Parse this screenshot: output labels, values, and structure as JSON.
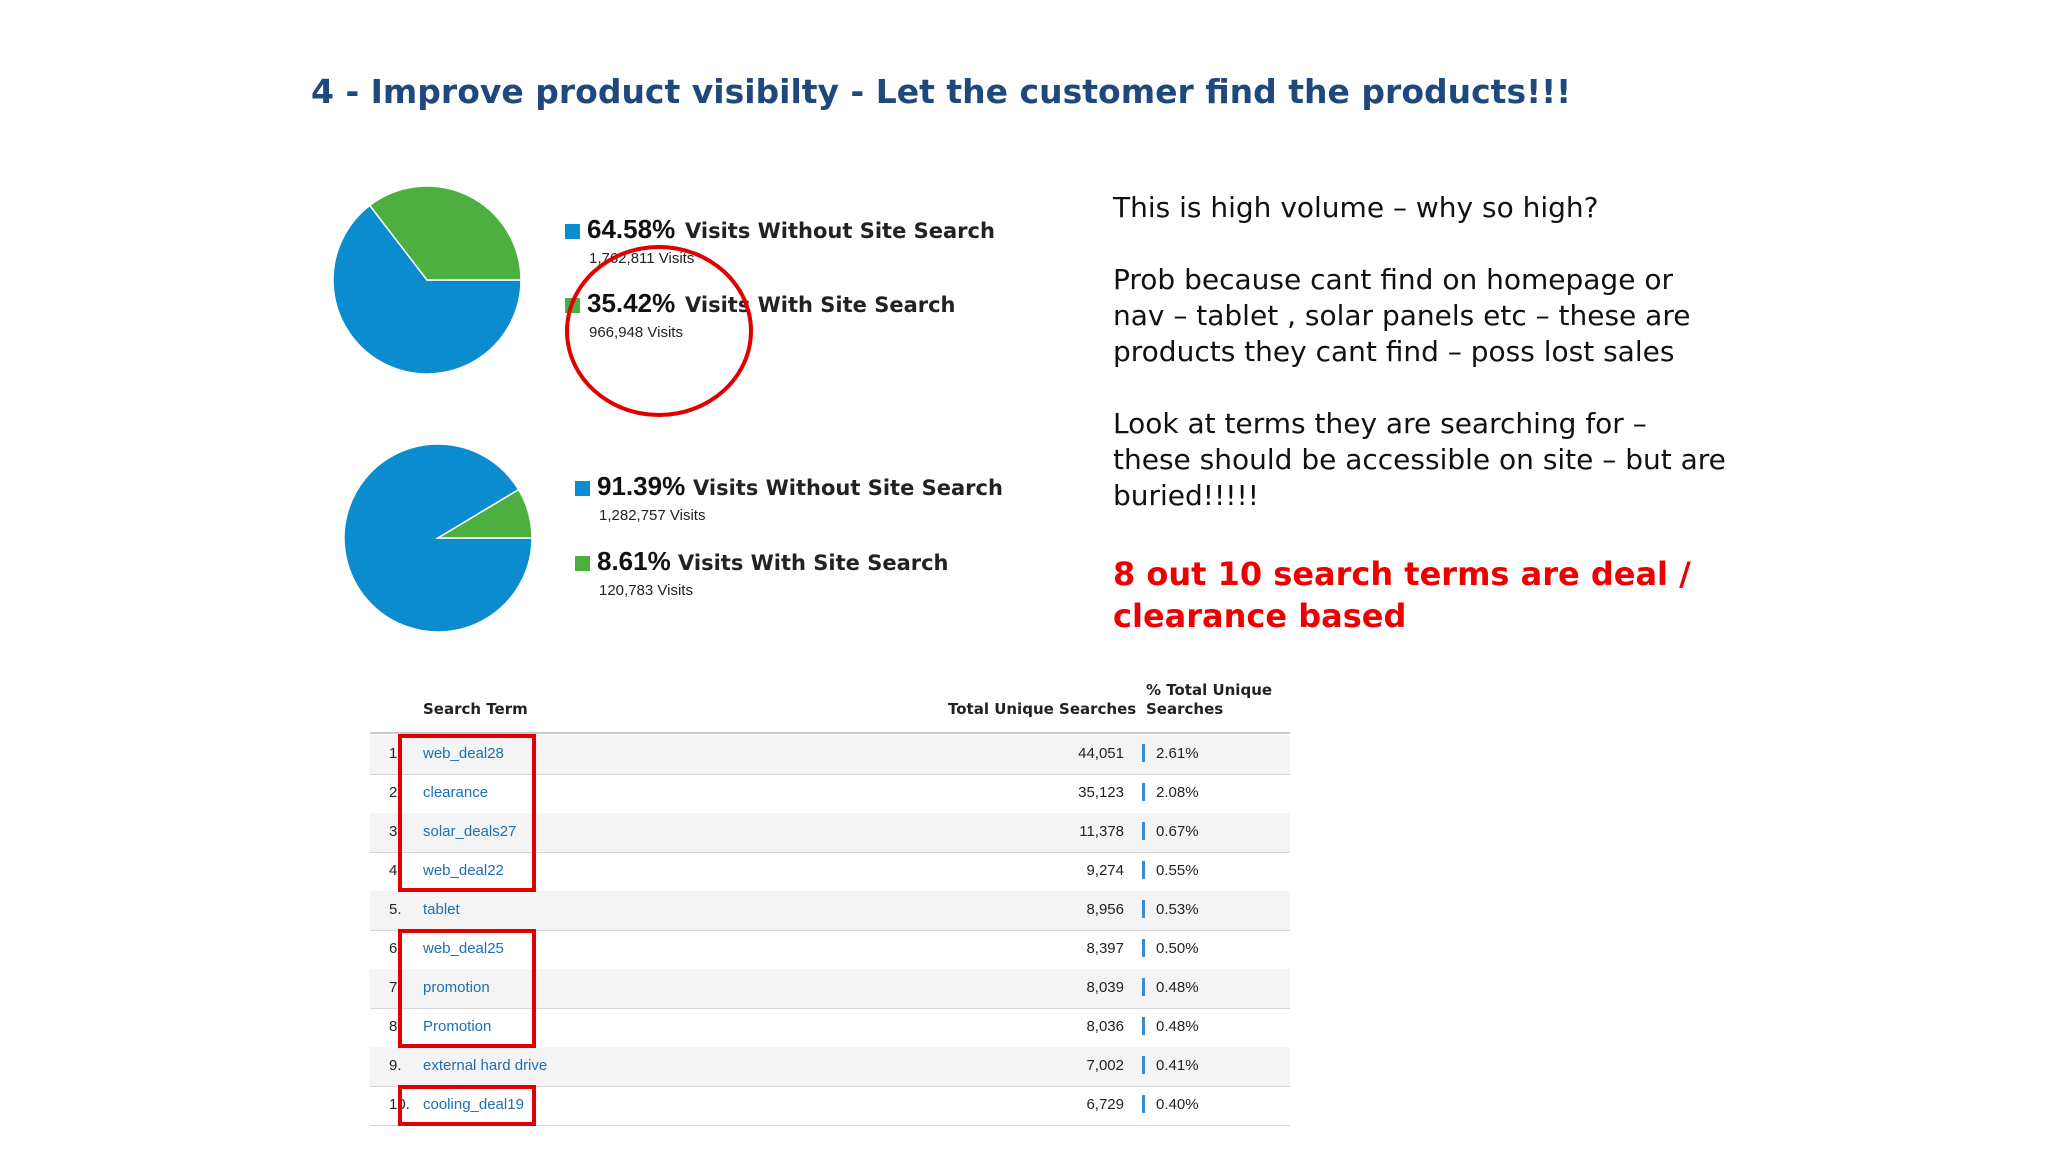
{
  "title": "4 - Improve product visibilty - Let the customer find the products!!!",
  "colors": {
    "blue": "#0a8ccf",
    "green": "#4caf3f",
    "red": "#e00000",
    "title": "#1f497d"
  },
  "chart_data": [
    {
      "type": "pie",
      "series": [
        {
          "name": "Visits Without Site Search",
          "pct": 64.58,
          "visits": "1,762,811 Visits",
          "color": "#0a8ccf"
        },
        {
          "name": "Visits With Site Search",
          "pct": 35.42,
          "visits": "966,948 Visits",
          "color": "#4caf3f"
        }
      ]
    },
    {
      "type": "pie",
      "series": [
        {
          "name": "Visits Without Site Search",
          "pct": 91.39,
          "visits": "1,282,757 Visits",
          "color": "#0a8ccf"
        },
        {
          "name": "Visits With Site Search",
          "pct": 8.61,
          "visits": "120,783 Visits",
          "color": "#4caf3f"
        }
      ]
    }
  ],
  "legend": [
    {
      "pct_text": "64.58%",
      "label": "Visits Without Site Search",
      "sub": "1,762,811 Visits"
    },
    {
      "pct_text": "35.42%",
      "label": "Visits With Site Search",
      "sub": "966,948 Visits"
    },
    {
      "pct_text": "91.39%",
      "label": "Visits Without Site Search",
      "sub": "1,282,757 Visits"
    },
    {
      "pct_text": "8.61%",
      "label": "Visits With Site Search",
      "sub": "120,783 Visits"
    }
  ],
  "notes": {
    "line1": "This is high volume – why so high?",
    "para2": "Prob  because cant find on homepage or nav – tablet , solar panels etc – these are products they cant find – poss lost sales",
    "para3": "Look at terms they are searching for – these should be accessible on site – but are buried!!!!!",
    "highlight": "8 out 10 search terms are deal / clearance based"
  },
  "table": {
    "headers": {
      "term": "Search Term",
      "searches": "Total Unique Searches",
      "pct_line1": "% Total Unique",
      "pct_line2": "Searches"
    },
    "rows": [
      {
        "num": "1.",
        "term": "web_deal28",
        "searches": "44,051",
        "pct": "2.61%",
        "boxed": true
      },
      {
        "num": "2.",
        "term": "clearance",
        "searches": "35,123",
        "pct": "2.08%",
        "boxed": true
      },
      {
        "num": "3.",
        "term": "solar_deals27",
        "searches": "11,378",
        "pct": "0.67%",
        "boxed": true
      },
      {
        "num": "4.",
        "term": "web_deal22",
        "searches": "9,274",
        "pct": "0.55%",
        "boxed": true
      },
      {
        "num": "5.",
        "term": "tablet",
        "searches": "8,956",
        "pct": "0.53%",
        "boxed": false
      },
      {
        "num": "6.",
        "term": "web_deal25",
        "searches": "8,397",
        "pct": "0.50%",
        "boxed": true
      },
      {
        "num": "7.",
        "term": "promotion",
        "searches": "8,039",
        "pct": "0.48%",
        "boxed": true
      },
      {
        "num": "8.",
        "term": "Promotion",
        "searches": "8,036",
        "pct": "0.48%",
        "boxed": true
      },
      {
        "num": "9.",
        "term": "external hard drive",
        "searches": "7,002",
        "pct": "0.41%",
        "boxed": false
      },
      {
        "num": "10.",
        "term": "cooling_deal19",
        "searches": "6,729",
        "pct": "0.40%",
        "boxed": true
      }
    ]
  }
}
